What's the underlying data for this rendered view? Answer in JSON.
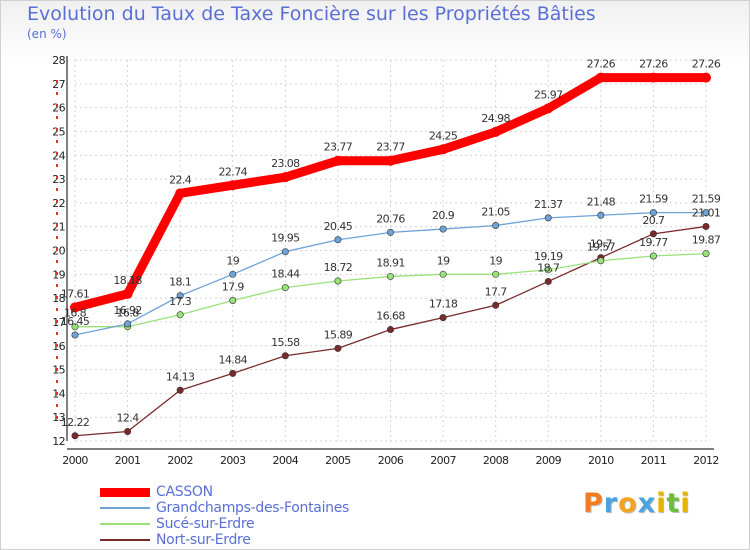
{
  "chart_data": {
    "type": "line",
    "title": "Evolution du Taux de Taxe Foncière sur les Propriétés Bâties",
    "ylabel": "(en %)",
    "xlabel": "",
    "x": [
      "2000",
      "2001",
      "2002",
      "2003",
      "2004",
      "2005",
      "2006",
      "2007",
      "2008",
      "2009",
      "2010",
      "2011",
      "2012"
    ],
    "ylim": [
      12,
      28
    ],
    "yticks": [
      12,
      13,
      14,
      15,
      16,
      17,
      18,
      19,
      20,
      21,
      22,
      23,
      24,
      25,
      26,
      27,
      28
    ],
    "grid": true,
    "legend_position": "bottom-left",
    "series": [
      {
        "name": "CASSON",
        "color": "#ff0000",
        "labels": [
          "17.61",
          "18.18",
          "22.4",
          "22.74",
          "23.08",
          "23.77",
          "23.77",
          "24.25",
          "24.98",
          "25.97",
          "27.26",
          "27.26",
          "27.26"
        ],
        "values": [
          17.61,
          18.18,
          22.4,
          22.74,
          23.08,
          23.77,
          23.77,
          24.25,
          24.98,
          25.97,
          27.26,
          27.26,
          27.26
        ]
      },
      {
        "name": "Grandchamps-des-Fontaines",
        "color": "#6fa3d8",
        "labels": [
          "16.45",
          "16.92",
          "18.1",
          "19",
          "19.95",
          "20.45",
          "20.76",
          "20.9",
          "21.05",
          "21.37",
          "21.48",
          "21.59",
          "21.59"
        ],
        "values": [
          16.45,
          16.92,
          18.1,
          19,
          19.95,
          20.45,
          20.76,
          20.9,
          21.05,
          21.37,
          21.48,
          21.59,
          21.59
        ]
      },
      {
        "name": "Sucé-sur-Erdre",
        "color": "#99e27a",
        "labels": [
          "16.8",
          "16.8",
          "17.3",
          "17.9",
          "18.44",
          "18.72",
          "18.91",
          "19",
          "19",
          "19.19",
          "19.57",
          "19.77",
          "19.87"
        ],
        "values": [
          16.8,
          16.8,
          17.3,
          17.9,
          18.44,
          18.72,
          18.91,
          19,
          19,
          19.19,
          19.57,
          19.77,
          19.87
        ]
      },
      {
        "name": "Nort-sur-Erdre",
        "color": "#7a2a2a",
        "labels": [
          "12.22",
          "12.4",
          "14.13",
          "14.84",
          "15.58",
          "15.89",
          "16.68",
          "17.18",
          "17.7",
          "18.7",
          "19.7",
          "20.7",
          "21.01"
        ],
        "values": [
          12.22,
          12.4,
          14.13,
          14.84,
          15.58,
          15.89,
          16.68,
          17.18,
          17.7,
          18.7,
          19.7,
          20.7,
          21.01
        ]
      }
    ]
  },
  "logo": {
    "letters": [
      "P",
      "r",
      "o",
      "x",
      "i",
      "t",
      "i"
    ],
    "colors": [
      "#f47c1f",
      "#4aa3df",
      "#f4a21f",
      "#4aa3df",
      "#e8b400",
      "#6cbf3b",
      "#e8b400"
    ]
  }
}
